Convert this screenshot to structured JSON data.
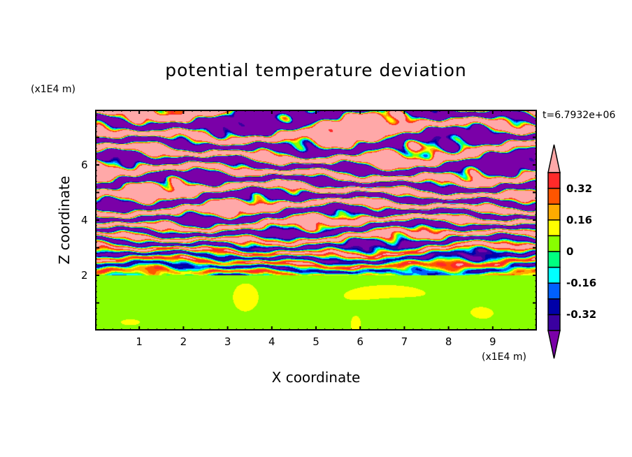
{
  "chart_data": {
    "type": "heatmap",
    "title": "potential temperature deviation",
    "xlabel": "X coordinate",
    "ylabel": "Z coordinate",
    "x_unit": "(x1E4 m)",
    "y_unit": "(x1E4 m)",
    "time_label": "t=6.7932e+06",
    "xlim": [
      0,
      10
    ],
    "ylim": [
      0,
      8
    ],
    "xticks": [
      "1",
      "2",
      "3",
      "4",
      "5",
      "6",
      "7",
      "8",
      "9"
    ],
    "yticks": [
      "2",
      "4",
      "6"
    ],
    "levels": [
      -0.4,
      -0.32,
      -0.24,
      -0.16,
      -0.08,
      0,
      0.08,
      0.16,
      0.24,
      0.32,
      0.4
    ],
    "colors_low_to_high": [
      "#7a00a8",
      "#3a00a0",
      "#0000a8",
      "#0060ff",
      "#00ffff",
      "#00ff80",
      "#88ff00",
      "#ffff00",
      "#ffaa00",
      "#ff5500",
      "#ff2a2a",
      "#ffa8a8"
    ],
    "colorbar_labels": [
      "0.32",
      "0.16",
      "0",
      "-0.16",
      "-0.32"
    ],
    "colorbar_label_values": [
      0.32,
      0.16,
      0,
      -0.16,
      -0.32
    ],
    "description_regions": {
      "stratified_layer_base_z": 2
    }
  }
}
